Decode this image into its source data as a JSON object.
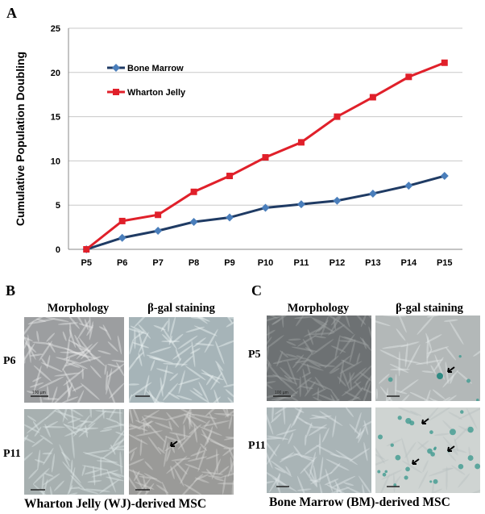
{
  "panels": {
    "a_label": "A",
    "b_label": "B",
    "c_label": "C"
  },
  "chart_data": {
    "type": "line",
    "title": "",
    "xlabel": "",
    "ylabel": "Cumulative Population Doubling",
    "ylim": [
      0,
      25
    ],
    "yticks": [
      0,
      5,
      10,
      15,
      20,
      25
    ],
    "grid": "horizontal",
    "legend_position": "top-left",
    "categories": [
      "P5",
      "P6",
      "P7",
      "P8",
      "P9",
      "P10",
      "P11",
      "P12",
      "P13",
      "P14",
      "P15"
    ],
    "series": [
      {
        "name": "Bone Marrow",
        "color": "#4A7EBB",
        "line_color": "#1F3B64",
        "marker": "diamond",
        "values": [
          0,
          1.3,
          2.1,
          3.1,
          3.6,
          4.7,
          5.1,
          5.5,
          6.3,
          7.2,
          8.3
        ]
      },
      {
        "name": "Wharton Jelly",
        "color": "#E0202A",
        "line_color": "#E0202A",
        "marker": "square",
        "values": [
          0,
          3.2,
          3.9,
          6.5,
          8.3,
          10.4,
          12.1,
          15.0,
          17.2,
          19.5,
          21.1
        ]
      }
    ]
  },
  "panel_b": {
    "col_morphology": "Morphology",
    "col_bgal": "β-gal staining",
    "row1": "P6",
    "row2": "P11",
    "caption": "Wharton Jelly (WJ)-derived MSC",
    "scale_label": "100 µm"
  },
  "panel_c": {
    "col_morphology": "Morphology",
    "col_bgal": "β-gal staining",
    "row1": "P5",
    "row2": "P11",
    "caption": "Bone Marrow (BM)-derived MSC",
    "scale_label": "100 µm"
  }
}
